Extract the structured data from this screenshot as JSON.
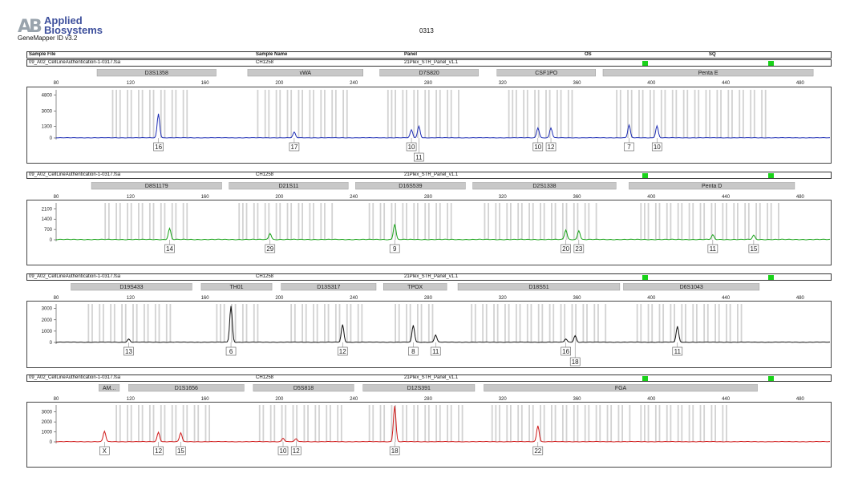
{
  "header": {
    "logo_mark": "AB",
    "logo_line1": "Applied",
    "logo_line2": "Biosystems",
    "software": "GeneMapper ID v3.2",
    "title": "0313"
  },
  "columns": {
    "sample_file": "Sample File",
    "sample_name": "Sample Name",
    "panel": "Panel",
    "os": "OS",
    "sq": "SQ"
  },
  "colors": {
    "qc_pass": "#19d219",
    "bin": "#d2d2d2",
    "marker_bar": "#c8c8c8",
    "blue": "#1f2fb5",
    "green": "#1aa31a",
    "black": "#111111",
    "red": "#d01a1a"
  },
  "chart_data": [
    {
      "type": "line",
      "dye": "blue",
      "sample_file": "09_A02_CellLineAuthentication-1-0317.fsa",
      "sample_name": "CH1258",
      "panel": "21Plex_STR_Panel_v1.1",
      "x_ticks": [
        80,
        120,
        160,
        200,
        240,
        280,
        320,
        360,
        400,
        440,
        480
      ],
      "y_ticks": [
        0,
        1300,
        3000,
        4800
      ],
      "xlim": [
        80,
        496
      ],
      "ylim": [
        0,
        5400
      ],
      "markers": [
        {
          "name": "D3S1358",
          "start": 102,
          "end": 166
        },
        {
          "name": "vWA",
          "start": 183,
          "end": 245
        },
        {
          "name": "D7S820",
          "start": 254,
          "end": 307
        },
        {
          "name": "CSF1PO",
          "start": 317,
          "end": 370
        },
        {
          "name": "Penta E",
          "start": 374,
          "end": 487
        }
      ],
      "bins": [
        [
          110,
          152
        ],
        [
          188,
          236
        ],
        [
          258,
          297
        ],
        [
          323,
          358
        ],
        [
          381,
          464
        ]
      ],
      "peaks": [
        {
          "x": 135,
          "height": 2700,
          "allele": "16"
        },
        {
          "x": 208,
          "height": 620,
          "allele": "17"
        },
        {
          "x": 271,
          "height": 880,
          "allele": "10"
        },
        {
          "x": 275,
          "height": 1300,
          "allele": "11"
        },
        {
          "x": 339,
          "height": 1130,
          "allele": "10"
        },
        {
          "x": 346,
          "height": 1100,
          "allele": "12"
        },
        {
          "x": 388,
          "height": 1420,
          "allele": "7"
        },
        {
          "x": 403,
          "height": 1340,
          "allele": "10"
        }
      ]
    },
    {
      "type": "line",
      "dye": "green",
      "sample_file": "09_A02_CellLineAuthentication-1-0317.fsa",
      "sample_name": "CH1258",
      "panel": "21Plex_STR_Panel_v1.1",
      "x_ticks": [
        80,
        120,
        160,
        200,
        240,
        280,
        320,
        360,
        400,
        440,
        480
      ],
      "y_ticks": [
        0,
        700,
        1400,
        2100
      ],
      "xlim": [
        80,
        496
      ],
      "ylim": [
        0,
        2500
      ],
      "markers": [
        {
          "name": "D8S1179",
          "start": 99,
          "end": 169
        },
        {
          "name": "D21S11",
          "start": 173,
          "end": 237
        },
        {
          "name": "D16S539",
          "start": 241,
          "end": 300
        },
        {
          "name": "D2S1338",
          "start": 304,
          "end": 381
        },
        {
          "name": "Penta D",
          "start": 388,
          "end": 477
        }
      ],
      "bins": [
        [
          106,
          150
        ],
        [
          178,
          229
        ],
        [
          248,
          292
        ],
        [
          310,
          370
        ],
        [
          394,
          468
        ]
      ],
      "peaks": [
        {
          "x": 141,
          "height": 750,
          "allele": "14"
        },
        {
          "x": 195,
          "height": 420,
          "allele": "29"
        },
        {
          "x": 262,
          "height": 1050,
          "allele": "9"
        },
        {
          "x": 354,
          "height": 660,
          "allele": "20"
        },
        {
          "x": 361,
          "height": 610,
          "allele": "23"
        },
        {
          "x": 433,
          "height": 310,
          "allele": "11"
        },
        {
          "x": 455,
          "height": 290,
          "allele": "15"
        }
      ]
    },
    {
      "type": "line",
      "dye": "black",
      "sample_file": "09_A02_CellLineAuthentication-1-0317.fsa",
      "sample_name": "CH1258",
      "panel": "21Plex_STR_Panel_v1.1",
      "x_ticks": [
        80,
        120,
        160,
        200,
        240,
        280,
        320,
        360,
        400,
        440,
        480
      ],
      "y_ticks": [
        0,
        1000,
        2000,
        3000
      ],
      "xlim": [
        80,
        496
      ],
      "ylim": [
        0,
        3400
      ],
      "markers": [
        {
          "name": "D19S433",
          "start": 88,
          "end": 153
        },
        {
          "name": "TH01",
          "start": 158,
          "end": 196
        },
        {
          "name": "D13S317",
          "start": 201,
          "end": 252
        },
        {
          "name": "TPOX",
          "start": 256,
          "end": 290
        },
        {
          "name": "D18S51",
          "start": 296,
          "end": 383
        },
        {
          "name": "D6S1043",
          "start": 385,
          "end": 458
        }
      ],
      "bins": [
        [
          97,
          144
        ],
        [
          166,
          190
        ],
        [
          206,
          246
        ],
        [
          262,
          285
        ],
        [
          303,
          376
        ],
        [
          392,
          451
        ]
      ],
      "peaks": [
        {
          "x": 119,
          "height": 280,
          "allele": "13"
        },
        {
          "x": 174,
          "height": 3200,
          "allele": "6"
        },
        {
          "x": 234,
          "height": 1550,
          "allele": "12"
        },
        {
          "x": 272,
          "height": 1500,
          "allele": "8"
        },
        {
          "x": 284,
          "height": 650,
          "allele": "11"
        },
        {
          "x": 354,
          "height": 300,
          "allele": "16"
        },
        {
          "x": 359,
          "height": 580,
          "allele": "18"
        },
        {
          "x": 414,
          "height": 1400,
          "allele": "11"
        }
      ]
    },
    {
      "type": "line",
      "dye": "red",
      "sample_file": "09_A02_CellLineAuthentication-1-0317.fsa",
      "sample_name": "CH1258",
      "panel": "21Plex_STR_Panel_v1.1",
      "x_ticks": [
        80,
        120,
        160,
        200,
        240,
        280,
        320,
        360,
        400,
        440,
        480
      ],
      "y_ticks": [
        0,
        1000,
        2000,
        3000
      ],
      "xlim": [
        80,
        496
      ],
      "ylim": [
        0,
        3700
      ],
      "markers": [
        {
          "name": "AM...",
          "start": 103,
          "end": 114
        },
        {
          "name": "D1S1656",
          "start": 119,
          "end": 181
        },
        {
          "name": "D5S818",
          "start": 186,
          "end": 240
        },
        {
          "name": "D12S391",
          "start": 245,
          "end": 305
        },
        {
          "name": "FGA",
          "start": 310,
          "end": 457
        }
      ],
      "bins": [
        [
          112,
          165
        ],
        [
          189,
          236
        ],
        [
          248,
          298
        ],
        [
          314,
          388
        ],
        [
          394,
          442
        ]
      ],
      "peaks": [
        {
          "x": 106,
          "height": 1050,
          "allele": "X"
        },
        {
          "x": 135,
          "height": 960,
          "allele": "12"
        },
        {
          "x": 147,
          "height": 900,
          "allele": "15"
        },
        {
          "x": 202,
          "height": 350,
          "allele": "10"
        },
        {
          "x": 209,
          "height": 290,
          "allele": "12"
        },
        {
          "x": 262,
          "height": 3600,
          "allele": "18"
        },
        {
          "x": 339,
          "height": 1620,
          "allele": "22"
        }
      ]
    }
  ]
}
